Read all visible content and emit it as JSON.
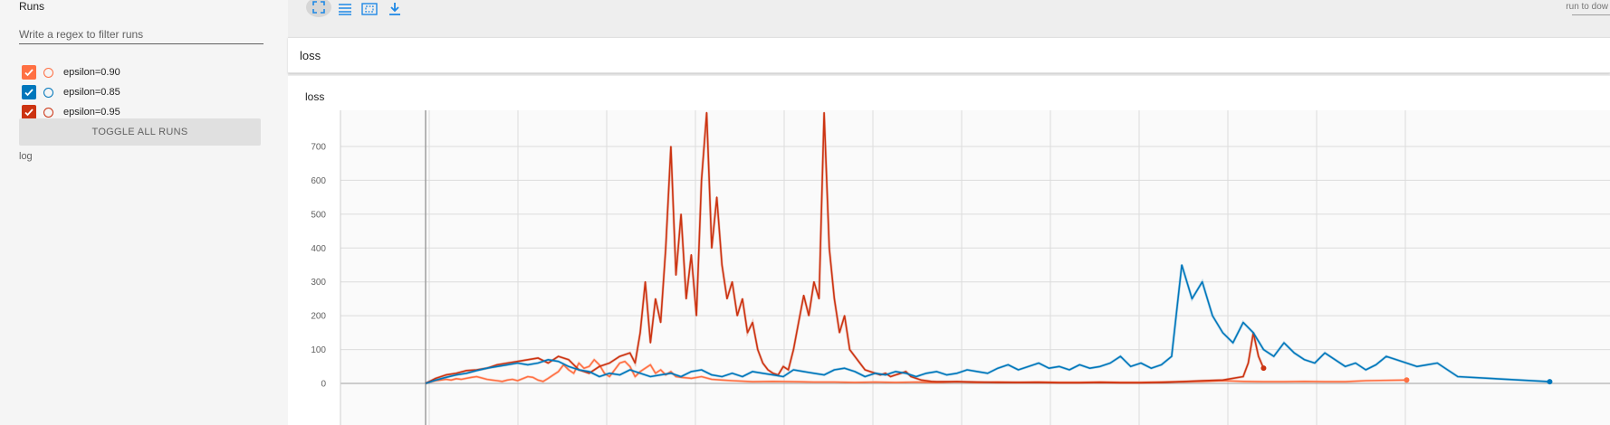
{
  "sidebar": {
    "title": "Runs",
    "filter_placeholder": "Write a regex to filter runs",
    "runs": [
      {
        "label": "epsilon=0.90",
        "color": "#ff7043",
        "checked": true
      },
      {
        "label": "epsilon=0.85",
        "color": "#0077bb",
        "checked": true
      },
      {
        "label": "epsilon=0.95",
        "color": "#cc3311",
        "checked": true
      }
    ],
    "toggle_all_label": "TOGGLE ALL RUNS",
    "log_label": "log"
  },
  "toolbar": {
    "icons": [
      "fullscreen-icon",
      "list-icon",
      "fit-domain-icon",
      "download-icon"
    ],
    "run_to_download_label": "run to dow"
  },
  "header": {
    "title": "loss"
  },
  "card": {
    "title": "loss"
  },
  "chart_data": {
    "type": "line",
    "title": "loss",
    "xlabel": "",
    "ylabel": "",
    "ylim": [
      -100,
      800
    ],
    "yticks": [
      0,
      100,
      200,
      300,
      400,
      500,
      600,
      700
    ],
    "grid": true,
    "series": [
      {
        "name": "epsilon=0.90",
        "color": "#ff7043",
        "x": [
          0,
          0.05,
          0.1,
          0.15,
          0.2,
          0.25,
          0.3,
          0.35,
          0.4,
          0.45,
          0.5,
          0.55,
          0.6,
          0.65,
          0.7,
          0.75,
          0.8,
          0.85,
          0.9,
          0.95,
          1.0,
          1.05,
          1.1,
          1.15,
          1.2,
          1.25,
          1.3,
          1.35,
          1.4,
          1.45,
          1.5,
          1.55,
          1.6,
          1.65,
          1.7,
          1.75,
          1.8,
          1.85,
          1.9,
          1.95,
          2.0,
          2.05,
          2.1,
          2.15,
          2.2,
          2.25,
          2.3,
          2.35,
          2.4,
          2.45,
          2.5,
          2.6,
          2.7,
          2.8,
          2.9,
          3.0,
          3.2,
          3.4,
          3.6,
          3.8,
          4.0,
          4.2,
          4.4,
          4.6,
          4.8,
          5.0,
          5.2,
          5.4,
          5.6,
          5.8,
          6.0,
          6.2,
          6.4,
          6.6,
          6.8,
          7.0,
          7.2,
          7.4,
          7.6,
          7.8,
          8.0,
          8.2,
          8.4,
          8.6,
          8.8,
          9.0,
          9.2,
          9.6
        ],
        "values": [
          0,
          5,
          8,
          10,
          12,
          10,
          14,
          12,
          15,
          18,
          20,
          16,
          12,
          10,
          8,
          6,
          10,
          12,
          8,
          14,
          20,
          18,
          10,
          6,
          15,
          25,
          35,
          55,
          40,
          30,
          60,
          45,
          50,
          70,
          55,
          30,
          20,
          40,
          60,
          65,
          50,
          20,
          35,
          45,
          55,
          30,
          40,
          25,
          35,
          20,
          18,
          15,
          20,
          12,
          10,
          8,
          5,
          6,
          5,
          4,
          4,
          3,
          4,
          3,
          4,
          3,
          5,
          3,
          4,
          3,
          4,
          3,
          3,
          4,
          3,
          3,
          4,
          5,
          6,
          8,
          6,
          5,
          5,
          6,
          5,
          5,
          8,
          10
        ]
      },
      {
        "name": "epsilon=0.85",
        "color": "#0077bb",
        "x": [
          0,
          0.1,
          0.2,
          0.3,
          0.4,
          0.5,
          0.6,
          0.7,
          0.8,
          0.9,
          1.0,
          1.1,
          1.2,
          1.3,
          1.4,
          1.5,
          1.6,
          1.7,
          1.8,
          1.9,
          2.0,
          2.1,
          2.2,
          2.3,
          2.4,
          2.5,
          2.6,
          2.7,
          2.8,
          2.9,
          3.0,
          3.1,
          3.2,
          3.3,
          3.4,
          3.5,
          3.6,
          3.7,
          3.8,
          3.9,
          4.0,
          4.1,
          4.2,
          4.3,
          4.4,
          4.5,
          4.6,
          4.7,
          4.8,
          4.9,
          5.0,
          5.1,
          5.2,
          5.3,
          5.4,
          5.5,
          5.6,
          5.7,
          5.8,
          5.9,
          6.0,
          6.1,
          6.2,
          6.3,
          6.4,
          6.5,
          6.6,
          6.7,
          6.8,
          6.9,
          7.0,
          7.1,
          7.2,
          7.3,
          7.4,
          7.5,
          7.6,
          7.7,
          7.8,
          7.9,
          8.0,
          8.1,
          8.2,
          8.3,
          8.4,
          8.5,
          8.6,
          8.7,
          8.8,
          8.9,
          9.0,
          9.1,
          9.2,
          9.3,
          9.4,
          9.5,
          9.6,
          9.7,
          9.8,
          9.9,
          10.0,
          10.1,
          11.0
        ],
        "values": [
          0,
          10,
          18,
          25,
          30,
          38,
          45,
          50,
          55,
          60,
          55,
          60,
          70,
          65,
          50,
          40,
          35,
          20,
          30,
          25,
          40,
          30,
          20,
          25,
          30,
          20,
          35,
          40,
          25,
          20,
          30,
          20,
          35,
          30,
          25,
          20,
          40,
          35,
          30,
          25,
          40,
          45,
          35,
          20,
          30,
          25,
          35,
          30,
          20,
          30,
          35,
          25,
          30,
          40,
          35,
          30,
          45,
          55,
          40,
          50,
          60,
          45,
          50,
          40,
          55,
          45,
          50,
          60,
          80,
          50,
          60,
          45,
          55,
          80,
          350,
          250,
          300,
          200,
          150,
          120,
          180,
          150,
          100,
          80,
          120,
          90,
          70,
          60,
          90,
          70,
          50,
          60,
          40,
          55,
          80,
          70,
          60,
          50,
          55,
          60,
          40,
          20,
          5
        ]
      },
      {
        "name": "epsilon=0.95",
        "color": "#cc3311",
        "x": [
          0,
          0.1,
          0.2,
          0.3,
          0.4,
          0.5,
          0.6,
          0.7,
          0.8,
          0.9,
          1.0,
          1.1,
          1.2,
          1.3,
          1.4,
          1.5,
          1.6,
          1.7,
          1.8,
          1.9,
          2.0,
          2.05,
          2.1,
          2.15,
          2.2,
          2.25,
          2.3,
          2.35,
          2.4,
          2.45,
          2.5,
          2.55,
          2.6,
          2.65,
          2.7,
          2.75,
          2.8,
          2.85,
          2.9,
          2.95,
          3.0,
          3.05,
          3.1,
          3.15,
          3.2,
          3.25,
          3.3,
          3.35,
          3.4,
          3.45,
          3.5,
          3.55,
          3.6,
          3.65,
          3.7,
          3.75,
          3.8,
          3.85,
          3.9,
          3.95,
          4.0,
          4.05,
          4.1,
          4.15,
          4.2,
          4.25,
          4.3,
          4.35,
          4.4,
          4.45,
          4.5,
          4.55,
          4.6,
          4.65,
          4.7,
          4.75,
          4.8,
          4.85,
          4.9,
          4.95,
          5.0,
          5.2,
          5.4,
          5.6,
          5.8,
          6.0,
          6.2,
          6.4,
          6.6,
          6.8,
          7.0,
          7.2,
          7.4,
          7.6,
          7.8,
          8.0,
          8.05,
          8.1,
          8.15,
          8.2
        ],
        "values": [
          0,
          15,
          25,
          30,
          38,
          40,
          45,
          55,
          60,
          65,
          70,
          75,
          60,
          80,
          70,
          40,
          30,
          50,
          60,
          80,
          90,
          60,
          150,
          300,
          120,
          250,
          180,
          400,
          700,
          320,
          500,
          250,
          380,
          200,
          600,
          800,
          400,
          550,
          350,
          250,
          300,
          200,
          250,
          150,
          180,
          100,
          60,
          40,
          30,
          25,
          50,
          40,
          100,
          180,
          260,
          200,
          300,
          250,
          800,
          400,
          250,
          150,
          200,
          100,
          80,
          60,
          40,
          35,
          30,
          25,
          30,
          20,
          25,
          30,
          35,
          20,
          15,
          10,
          8,
          6,
          5,
          5,
          4,
          3,
          3,
          3,
          2,
          2,
          3,
          2,
          2,
          3,
          5,
          8,
          10,
          20,
          60,
          150,
          80,
          45
        ]
      }
    ]
  }
}
